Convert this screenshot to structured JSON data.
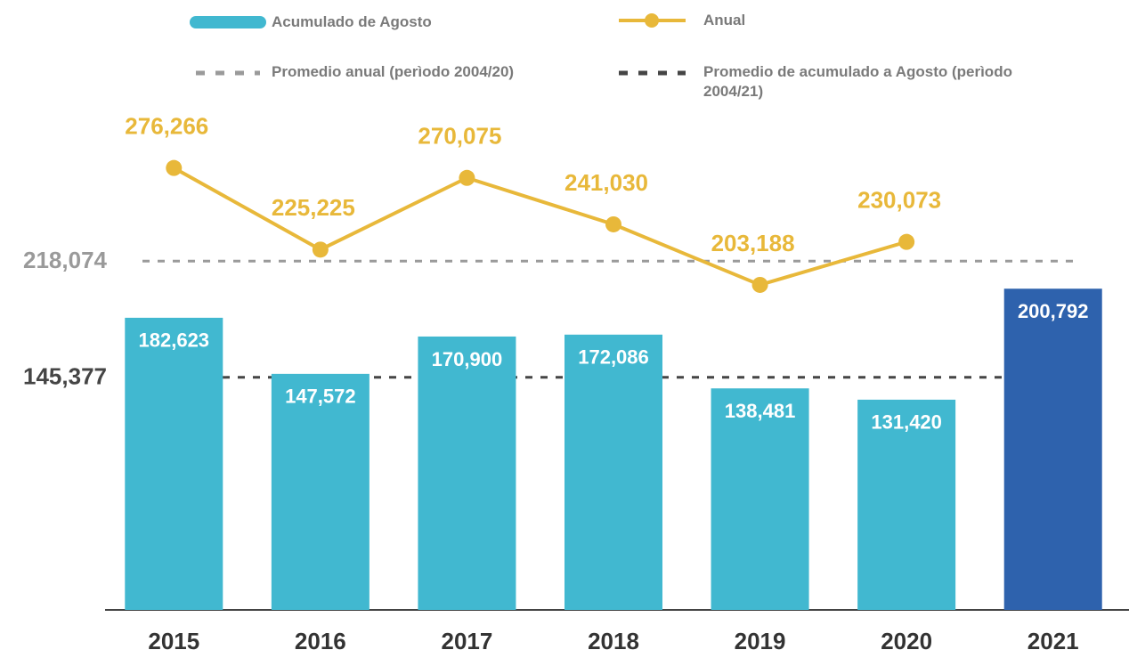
{
  "chart_data": {
    "type": "bar",
    "categories": [
      "2015",
      "2016",
      "2017",
      "2018",
      "2019",
      "2020",
      "2021"
    ],
    "series": [
      {
        "name": "Acumulado de Agosto",
        "type": "bar",
        "color": "#41b8d0",
        "colors": [
          "#41b8d0",
          "#41b8d0",
          "#41b8d0",
          "#41b8d0",
          "#41b8d0",
          "#41b8d0",
          "#2e62ad"
        ],
        "values": [
          182623,
          147572,
          170900,
          172086,
          138481,
          131420,
          200792
        ],
        "value_labels": [
          "182,623",
          "147,572",
          "170,900",
          "172,086",
          "138,481",
          "131,420",
          "200,792"
        ]
      },
      {
        "name": "Anual",
        "type": "line",
        "color": "#e8b83a",
        "values": [
          276266,
          225225,
          270075,
          241030,
          203188,
          230073,
          null
        ],
        "value_labels": [
          "276,266",
          "225,225",
          "270,075",
          "241,030",
          "203,188",
          "230,073",
          null
        ]
      }
    ],
    "reference_lines": [
      {
        "name": "Promedio anual (perìodo 2004/20)",
        "value": 218074,
        "label": "218,074",
        "color": "#9a9a9a"
      },
      {
        "name": "Promedio de acumulado a Agosto (perìodo 2004/21)",
        "value": 145377,
        "label": "145,377",
        "color": "#454545"
      }
    ],
    "ylim": [
      0,
      300000
    ]
  }
}
